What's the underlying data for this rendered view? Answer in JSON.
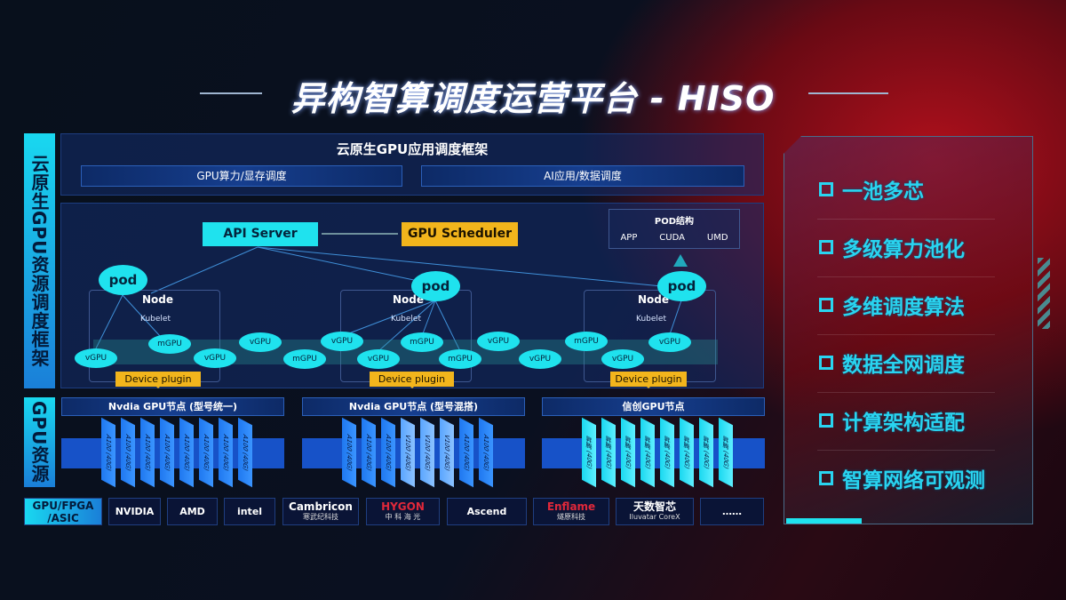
{
  "title": "异构智算调度运营平台 - HISO",
  "left_labels": {
    "framework": "云原生GPU资源调度框架",
    "gpu": "GPU资源"
  },
  "top": {
    "title": "云原生GPU应用调度框架",
    "boxes": [
      "GPU算力/显存调度",
      "AI应用/数据调度"
    ]
  },
  "api_server": "API Server",
  "gpu_scheduler": "GPU Scheduler",
  "pod_structure": {
    "title": "POD结构",
    "items": [
      "APP",
      "CUDA",
      "UMD"
    ]
  },
  "pod_label": "pod",
  "node_label": "Node",
  "kubelet_label": "Kubelet",
  "device_plugin": "Device plugin",
  "gpu_units": [
    "vGPU",
    "mGPU",
    "vGPU",
    "vGPU",
    "mGPU",
    "vGPU",
    "vGPU",
    "mGPU",
    "mGPU",
    "vGPU",
    "vGPU",
    "mGPU",
    "vGPU",
    "vGPU"
  ],
  "gpu_nodes": [
    {
      "title": "Nvdia GPU节点 (型号统一)",
      "chips": [
        "A100 (40G)",
        "A100 (40G)",
        "A100 (40G)",
        "A100 (40G)",
        "A100 (40G)",
        "A100 (40G)",
        "A100 (40G)",
        "A100 (40G)"
      ],
      "styles": [
        "a",
        "a",
        "a",
        "a",
        "a",
        "a",
        "a",
        "a"
      ]
    },
    {
      "title": "Nvdia GPU节点 (型号混搭)",
      "chips": [
        "A100 (40G)",
        "A100 (40G)",
        "A100 (40G)",
        "V100 (40G)",
        "V100 (40G)",
        "V100 (40G)",
        "A100 (40G)",
        "A100 (40G)"
      ],
      "styles": [
        "a",
        "a",
        "a",
        "v",
        "v",
        "v",
        "a",
        "a"
      ]
    },
    {
      "title": "信创GPU节点",
      "chips": [
        "昇腾 (40G)",
        "昇腾 (40G)",
        "昇腾 (40G)",
        "昇腾 (40G)",
        "昇腾 (40G)",
        "昇腾 (40G)",
        "昇腾 (40G)",
        "昇腾 (40G)"
      ],
      "styles": [
        "x",
        "x",
        "x",
        "x",
        "x",
        "x",
        "x",
        "x"
      ]
    }
  ],
  "vendors": {
    "label": "GPU/FPGA /ASIC",
    "items": [
      {
        "name": "NVIDIA",
        "sub": "",
        "color": "#ffffff"
      },
      {
        "name": "AMD",
        "sub": "",
        "color": "#ffffff"
      },
      {
        "name": "intel",
        "sub": "",
        "color": "#ffffff"
      },
      {
        "name": "Cambricon",
        "sub": "寒武纪科技",
        "color": "#ffffff"
      },
      {
        "name": "HYGON",
        "sub": "中 科 海 光",
        "color": "#e0283a"
      },
      {
        "name": "Ascend",
        "sub": "",
        "color": "#ffffff"
      },
      {
        "name": "Enflame",
        "sub": "燧原科技",
        "color": "#e0283a"
      },
      {
        "name": "天数智芯",
        "sub": "Iluvatar CoreX",
        "color": "#ffffff"
      },
      {
        "name": "……",
        "sub": "",
        "color": "#ffffff"
      }
    ]
  },
  "features": [
    "一池多芯",
    "多级算力池化",
    "多维调度算法",
    "数据全网调度",
    "计算架构适配",
    "智算网络可观测"
  ],
  "colors": {
    "cyan": "#1fe2ee",
    "orange": "#f2b51c",
    "blue": "#1752c8",
    "red": "#b0101c"
  }
}
